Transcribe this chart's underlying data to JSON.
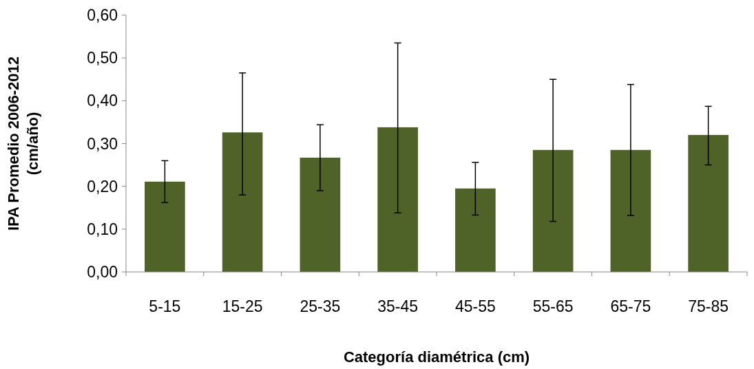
{
  "chart_data": {
    "type": "bar",
    "xlabel": "Categoría diamétrica (cm)",
    "ylabel": "IPA Promedio 2006-2012\n(cm/año)",
    "categories": [
      "5-15",
      "15-25",
      "25-35",
      "35-45",
      "45-55",
      "55-65",
      "65-75",
      "75-85"
    ],
    "values": [
      0.211,
      0.326,
      0.267,
      0.338,
      0.195,
      0.285,
      0.285,
      0.32
    ],
    "errors": [
      [
        0.162,
        0.26
      ],
      [
        0.18,
        0.465
      ],
      [
        0.19,
        0.344
      ],
      [
        0.138,
        0.535
      ],
      [
        0.133,
        0.256
      ],
      [
        0.118,
        0.45
      ],
      [
        0.132,
        0.438
      ],
      [
        0.25,
        0.387
      ]
    ],
    "color": "#4f6228",
    "ylim": [
      0,
      0.6
    ],
    "yticks": [
      {
        "value": 0,
        "label": "0,00"
      },
      {
        "value": 0.1,
        "label": "0,10"
      },
      {
        "value": 0.2,
        "label": "0,20"
      },
      {
        "value": 0.3,
        "label": "0,30"
      },
      {
        "value": 0.4,
        "label": "0,40"
      },
      {
        "value": 0.5,
        "label": "0,50"
      },
      {
        "value": 0.6,
        "label": "0,60"
      }
    ],
    "grid": false
  }
}
